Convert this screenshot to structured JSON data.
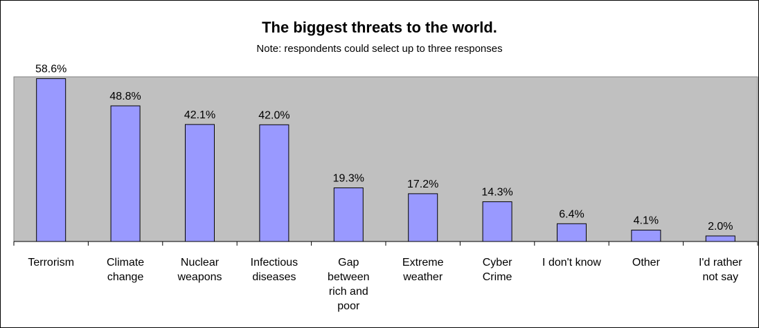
{
  "chart_data": {
    "type": "bar",
    "title": "The biggest threats to the world.",
    "subtitle": "Note: respondents could select up to three responses",
    "xlabel": "",
    "ylabel": "",
    "ylim": [
      0,
      60
    ],
    "grid": false,
    "categories": [
      [
        "Terrorism"
      ],
      [
        "Climate",
        "change"
      ],
      [
        "Nuclear",
        "weapons"
      ],
      [
        "Infectious",
        "diseases"
      ],
      [
        "Gap",
        "between",
        "rich and",
        "poor"
      ],
      [
        "Extreme",
        "weather"
      ],
      [
        "Cyber",
        "Crime"
      ],
      [
        "I don't know"
      ],
      [
        "Other"
      ],
      [
        "I'd rather",
        "not say"
      ]
    ],
    "values": [
      58.6,
      48.8,
      42.1,
      42.0,
      19.3,
      17.2,
      14.3,
      6.4,
      4.1,
      2.0
    ],
    "data_labels": [
      "58.6%",
      "48.8%",
      "42.1%",
      "42.0%",
      "19.3%",
      "17.2%",
      "14.3%",
      "6.4%",
      "4.1%",
      "2.0%"
    ],
    "colors": {
      "bar": "#9999ff",
      "plot_background": "#c0c0c0",
      "bar_stroke": "#000000"
    }
  }
}
